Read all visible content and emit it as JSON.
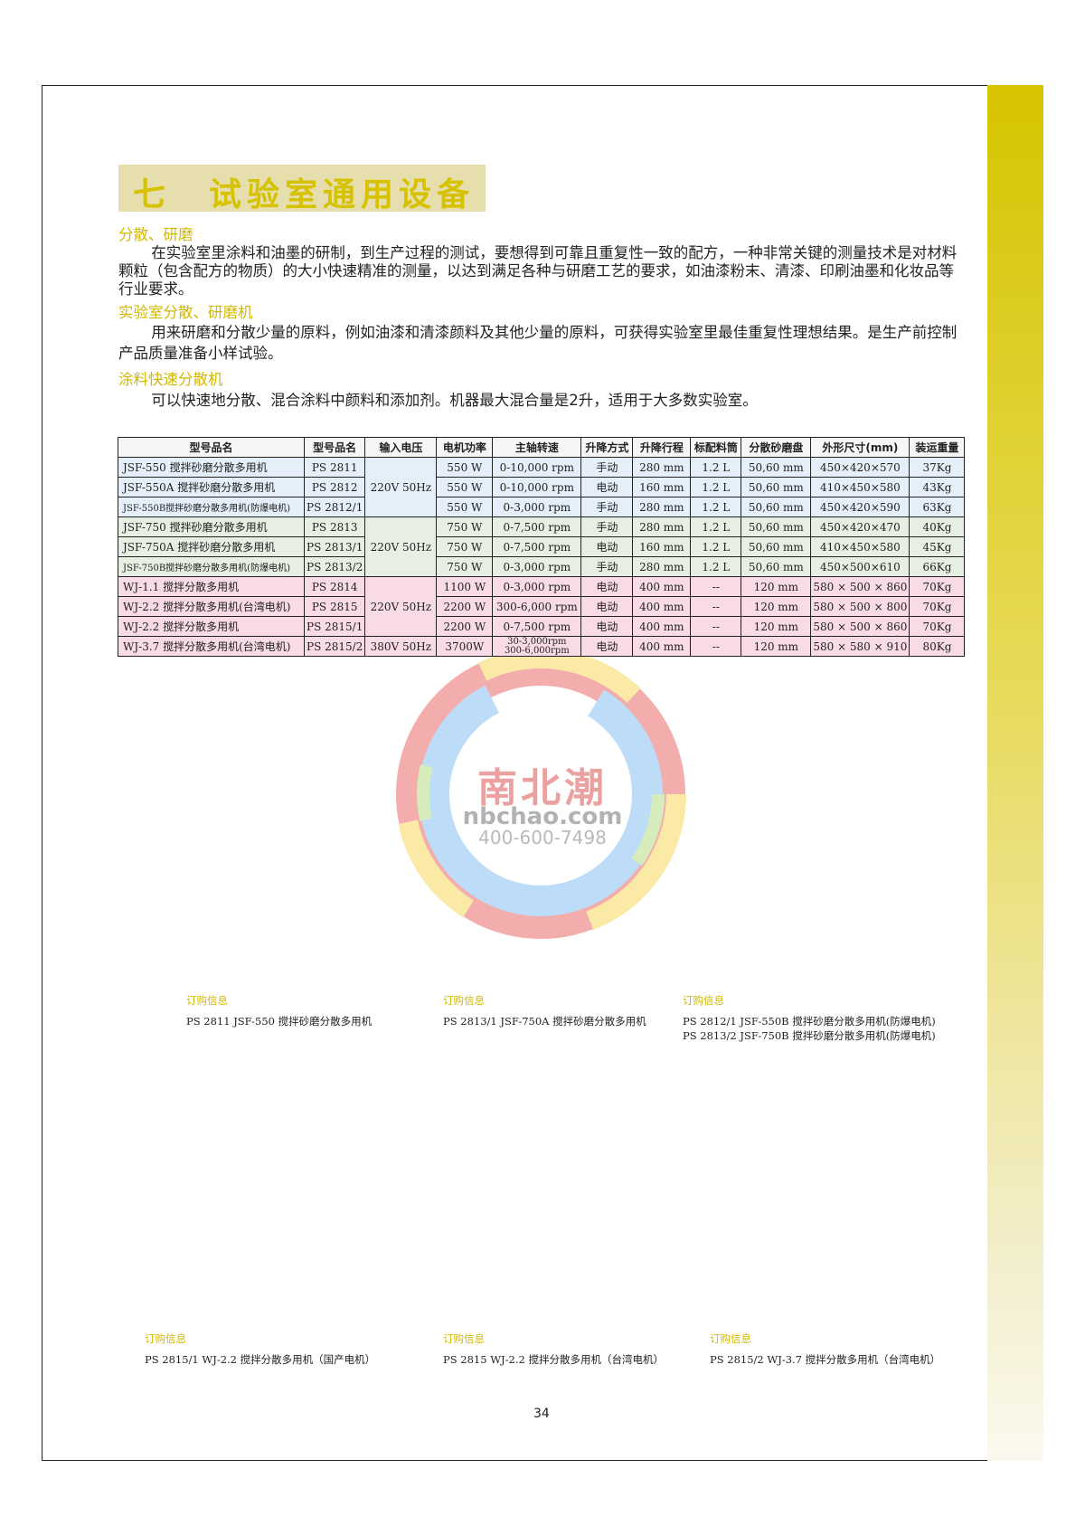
{
  "colors": {
    "accent": "#d6c200",
    "title_bg": "#e6dfad",
    "group_blue": "#e4eff9",
    "group_green": "#e7efe2",
    "group_pink": "#f8dbe5"
  },
  "title": "七　试验室通用设备",
  "sections": [
    {
      "heading": "分散、研磨",
      "body": "在实验室里涂料和油墨的研制，到生产过程的测试，要想得到可靠且重复性一致的配方，一种非常关键的测量技术是对材料颗粒（包含配方的物质）的大小快速精准的测量，以达到满足各种与研磨工艺的要求，如油漆粉末、清漆、印刷油墨和化妆品等行业要求。"
    },
    {
      "heading": "实验室分散、研磨机",
      "body": "用来研磨和分散少量的原料，例如油漆和清漆颜料及其他少量的原料，可获得实验室里最佳重复性理想结果。是生产前控制产品质量准备小样试验。"
    },
    {
      "heading": "涂料快速分散机",
      "body": "可以快速地分散、混合涂料中颜料和添加剂。机器最大混合量是2升，适用于大多数实验室。"
    }
  ],
  "table": {
    "headers": [
      "型号品名",
      "型号品名",
      "输入电压",
      "电机功率",
      "主轴转速",
      "升降方式",
      "升降行程",
      "标配料筒",
      "分散砂磨盘",
      "外形尺寸(mm)",
      "装运重量"
    ],
    "rows": [
      {
        "group": "blue",
        "name": "JSF-550 搅拌砂磨分散多用机",
        "model": "PS 2811",
        "voltage": "220V 50Hz",
        "power": "550 W",
        "speed": "0-10,000 rpm",
        "lift": "手动",
        "stroke": "280 mm",
        "barrel": "1.2 L",
        "disc": "50,60 mm",
        "size": "450×420×570",
        "weight": "37Kg"
      },
      {
        "group": "blue",
        "name": "JSF-550A 搅拌砂磨分散多用机",
        "model": "PS 2812",
        "voltage": null,
        "power": "550 W",
        "speed": "0-10,000 rpm",
        "lift": "电动",
        "stroke": "160 mm",
        "barrel": "1.2 L",
        "disc": "50,60 mm",
        "size": "410×450×580",
        "weight": "43Kg"
      },
      {
        "group": "blue",
        "name": "JSF-550B搅拌砂磨分散多用机(防爆电机)",
        "model": "PS 2812/1",
        "voltage": null,
        "power": "550 W",
        "speed": "0-3,000 rpm",
        "lift": "手动",
        "stroke": "280 mm",
        "barrel": "1.2 L",
        "disc": "50,60 mm",
        "size": "450×420×590",
        "weight": "63Kg"
      },
      {
        "group": "green",
        "name": "JSF-750 搅拌砂磨分散多用机",
        "model": "PS 2813",
        "voltage": "220V 50Hz",
        "power": "750 W",
        "speed": "0-7,500 rpm",
        "lift": "手动",
        "stroke": "280 mm",
        "barrel": "1.2 L",
        "disc": "50,60 mm",
        "size": "450×420×470",
        "weight": "40Kg"
      },
      {
        "group": "green",
        "name": "JSF-750A 搅拌砂磨分散多用机",
        "model": "PS 2813/1",
        "voltage": null,
        "power": "750 W",
        "speed": "0-7,500 rpm",
        "lift": "电动",
        "stroke": "160 mm",
        "barrel": "1.2 L",
        "disc": "50,60 mm",
        "size": "410×450×580",
        "weight": "45Kg"
      },
      {
        "group": "green",
        "name": "JSF-750B搅拌砂磨分散多用机(防爆电机)",
        "model": "PS 2813/2",
        "voltage": null,
        "power": "750 W",
        "speed": "0-3,000 rpm",
        "lift": "手动",
        "stroke": "280 mm",
        "barrel": "1.2 L",
        "disc": "50,60 mm",
        "size": "450×500×610",
        "weight": "66Kg"
      },
      {
        "group": "pink",
        "name": "WJ-1.1 搅拌分散多用机",
        "model": "PS 2814",
        "voltage": "220V 50Hz",
        "power": "1100 W",
        "speed": "0-3,000 rpm",
        "lift": "电动",
        "stroke": "400 mm",
        "barrel": "--",
        "disc": "120 mm",
        "size": "580 × 500 × 860",
        "weight": "70Kg"
      },
      {
        "group": "pink",
        "name": "WJ-2.2 搅拌分散多用机(台湾电机)",
        "model": "PS 2815",
        "voltage": null,
        "power": "2200 W",
        "speed": "300-6,000 rpm",
        "lift": "电动",
        "stroke": "400 mm",
        "barrel": "--",
        "disc": "120 mm",
        "size": "580 × 500 × 800",
        "weight": "70Kg"
      },
      {
        "group": "pink",
        "name": "WJ-2.2 搅拌分散多用机",
        "model": "PS 2815/1",
        "voltage": null,
        "power": "2200 W",
        "speed": "0-7,500 rpm",
        "lift": "电动",
        "stroke": "400 mm",
        "barrel": "--",
        "disc": "120 mm",
        "size": "580 × 500 × 860",
        "weight": "70Kg"
      },
      {
        "group": "pink",
        "name": "WJ-3.7 搅拌分散多用机(台湾电机)",
        "model": "PS 2815/2",
        "voltage": "380V 50Hz",
        "power": "3700W",
        "speed": "30-3,000rpm\n300-6,000rpm",
        "lift": "电动",
        "stroke": "400 mm",
        "barrel": "--",
        "disc": "120 mm",
        "size": "580 × 580 × 910",
        "weight": "80Kg"
      }
    ]
  },
  "watermark": {
    "brand_cn": "南北潮",
    "site": "nbchao.com",
    "phone": "400-600-7498"
  },
  "orders": [
    {
      "label": "订购信息",
      "lines": [
        "PS 2811 JSF-550 搅拌砂磨分散多用机"
      ]
    },
    {
      "label": "订购信息",
      "lines": [
        "PS 2813/1 JSF-750A 搅拌砂磨分散多用机"
      ]
    },
    {
      "label": "订购信息",
      "lines": [
        "PS 2812/1 JSF-550B 搅拌砂磨分散多用机(防爆电机)",
        "PS 2813/2 JSF-750B 搅拌砂磨分散多用机(防爆电机)"
      ]
    },
    {
      "label": "订购信息",
      "lines": [
        "PS 2815/1 WJ-2.2 搅拌分散多用机（国产电机）"
      ]
    },
    {
      "label": "订购信息",
      "lines": [
        "PS 2815 WJ-2.2 搅拌分散多用机（台湾电机）"
      ]
    },
    {
      "label": "订购信息",
      "lines": [
        "PS 2815/2 WJ-3.7 搅拌分散多用机（台湾电机）"
      ]
    }
  ],
  "page_number": "34"
}
